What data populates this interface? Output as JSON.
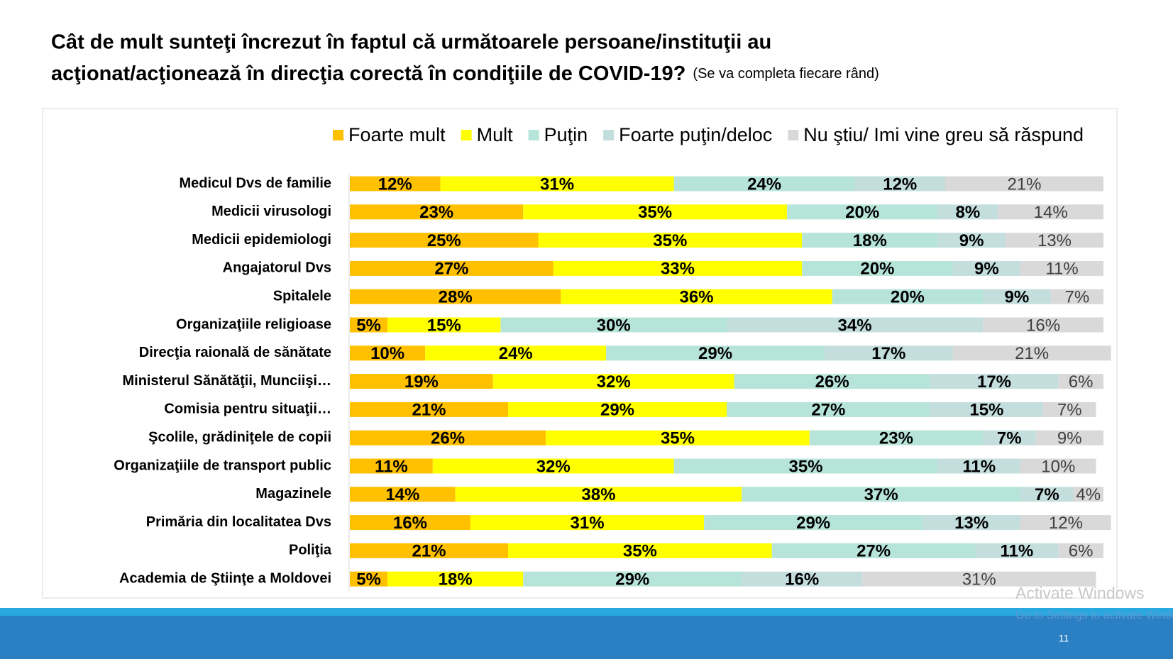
{
  "chart_data": {
    "type": "stacked-bar-horizontal",
    "title": [
      "Cât de mult sunteţi încrezut în faptul că următoarele persoane/instituţii au",
      "acţionat/acţionează în direcţia corectă în condiţiile de COVID-19?"
    ],
    "subtitle": "(Se va completa fiecare rând)",
    "categories": [
      "Medicul Dvs de familie",
      "Medicii virusologi",
      "Medicii epidemiologi",
      "Angajatorul Dvs",
      "Spitalele",
      "Organizaţiile religioase",
      "Direcţia raională de sănătate",
      "Ministerul Sănătăţii, Munciişi…",
      "Comisia pentru situaţii…",
      "Şcolile, grădiniţele de copii",
      "Organizaţiile de transport public",
      "Magazinele",
      "Primăria din localitatea Dvs",
      "Poliţia",
      "Academia de Ştiinţe a Moldovei"
    ],
    "xlim": [
      0,
      100
    ],
    "series": [
      {
        "name": "Foarte mult",
        "color": "#FFC000",
        "values": [
          12,
          23,
          25,
          27,
          28,
          5,
          10,
          19,
          21,
          26,
          11,
          14,
          16,
          21,
          5
        ],
        "value_labels": [
          "12%",
          "23%",
          "25%",
          "27%",
          "28%",
          "5%",
          "10%",
          "19%",
          "21%",
          "26%",
          "11%",
          "14%",
          "16%",
          "21%",
          "5%"
        ]
      },
      {
        "name": "Mult",
        "color": "#FFFF00",
        "values": [
          31,
          35,
          35,
          33,
          36,
          15,
          24,
          32,
          29,
          35,
          32,
          38,
          31,
          35,
          18
        ],
        "value_labels": [
          "31%",
          "35%",
          "35%",
          "33%",
          "36%",
          "15%",
          "24%",
          "32%",
          "29%",
          "35%",
          "32%",
          "38%",
          "31%",
          "35%",
          "18%"
        ]
      },
      {
        "name": "Puţin",
        "color": "#B7E4D8",
        "values": [
          24,
          20,
          18,
          20,
          20,
          30,
          29,
          26,
          27,
          23,
          35,
          37,
          29,
          27,
          29
        ],
        "value_labels": [
          "24%",
          "20%",
          "18%",
          "20%",
          "20%",
          "30%",
          "29%",
          "26%",
          "27%",
          "23%",
          "35%",
          "37%",
          "29%",
          "27%",
          "29%"
        ]
      },
      {
        "name": "Foarte puţin/deloc",
        "color": "#C3DEDD",
        "values": [
          12,
          8,
          9,
          9,
          9,
          34,
          17,
          17,
          15,
          7,
          11,
          7,
          13,
          11,
          16
        ],
        "value_labels": [
          "12%",
          "8%",
          "9%",
          "9%",
          "9%",
          "34%",
          "17%",
          "17%",
          "15%",
          "7%",
          "11%",
          "7%",
          "13%",
          "11%",
          "16%"
        ]
      },
      {
        "name": "Nu ştiu/ Imi vine greu să răspund",
        "color": "#D9D9D9",
        "values": [
          21,
          14,
          13,
          11,
          7,
          16,
          21,
          6,
          7,
          9,
          10,
          4,
          12,
          6,
          31
        ],
        "value_labels": [
          "21%",
          "14%",
          "13%",
          "11%",
          "7%",
          "16%",
          "21%",
          "6%",
          "7%",
          "9%",
          "10%",
          "4%",
          "12%",
          "6%",
          "31%"
        ]
      }
    ],
    "legend": "top"
  },
  "footer": {
    "page_number": "11"
  },
  "watermark": [
    "Activate Windows",
    "Go to Settings to activate Windows."
  ]
}
